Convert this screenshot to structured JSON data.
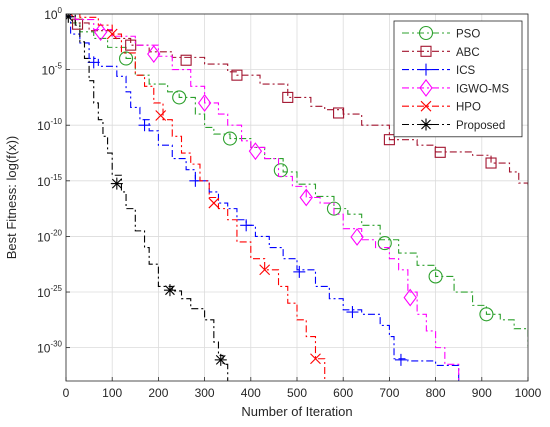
{
  "chart_data": {
    "type": "line",
    "title": "",
    "xlabel": "Number of Iteration",
    "ylabel": "Best Fitness: log(f(x))",
    "xlim": [
      0,
      1000
    ],
    "ylim_exponent": [
      -33,
      0
    ],
    "y_scale": "log",
    "grid": true,
    "legend_position": "top-right",
    "x_ticks": [
      "0",
      "100",
      "200",
      "300",
      "400",
      "500",
      "600",
      "700",
      "800",
      "900",
      "1000"
    ],
    "y_ticks": [
      {
        "base": "10",
        "exp": "0",
        "value_exp": 0
      },
      {
        "base": "10",
        "exp": "-5",
        "value_exp": -5
      },
      {
        "base": "10",
        "exp": "-10",
        "value_exp": -10
      },
      {
        "base": "10",
        "exp": "-15",
        "value_exp": -15
      },
      {
        "base": "10",
        "exp": "-20",
        "value_exp": -20
      },
      {
        "base": "10",
        "exp": "-25",
        "value_exp": -25
      },
      {
        "base": "10",
        "exp": "-30",
        "value_exp": -30
      }
    ],
    "series": [
      {
        "name": "PSO",
        "color": "#2ca02c",
        "marker": "circle",
        "dash": "7,3,2,3",
        "x_log10y": [
          [
            0,
            0.2
          ],
          [
            10,
            -0.8
          ],
          [
            30,
            -1.6
          ],
          [
            60,
            -2.2
          ],
          [
            90,
            -3.0
          ],
          [
            130,
            -4.0
          ],
          [
            150,
            -5.5
          ],
          [
            180,
            -6.3
          ],
          [
            220,
            -7.0
          ],
          [
            245,
            -7.5
          ],
          [
            280,
            -9.0
          ],
          [
            300,
            -10.2
          ],
          [
            320,
            -10.8
          ],
          [
            355,
            -11.2
          ],
          [
            400,
            -12.0
          ],
          [
            430,
            -13.0
          ],
          [
            470,
            -14.2
          ],
          [
            500,
            -15.3
          ],
          [
            540,
            -16.4
          ],
          [
            580,
            -17.5
          ],
          [
            610,
            -18.0
          ],
          [
            640,
            -19.0
          ],
          [
            680,
            -20.3
          ],
          [
            720,
            -21.5
          ],
          [
            760,
            -22.6
          ],
          [
            800,
            -23.6
          ],
          [
            840,
            -25.0
          ],
          [
            880,
            -26.2
          ],
          [
            910,
            -27.0
          ],
          [
            940,
            -27.5
          ],
          [
            970,
            -28.3
          ],
          [
            1000,
            -29.9
          ]
        ],
        "marker_x": [
          130,
          245,
          355,
          465,
          580,
          690,
          800,
          910
        ]
      },
      {
        "name": "ABC",
        "color": "#a2142f",
        "marker": "square",
        "dash": "7,3,2,3",
        "x_log10y": [
          [
            0,
            0.3
          ],
          [
            20,
            -0.8
          ],
          [
            50,
            -1.5
          ],
          [
            100,
            -2.2
          ],
          [
            140,
            -2.8
          ],
          [
            180,
            -3.4
          ],
          [
            230,
            -3.9
          ],
          [
            300,
            -4.5
          ],
          [
            350,
            -5.2
          ],
          [
            370,
            -5.5
          ],
          [
            420,
            -6.3
          ],
          [
            480,
            -7.5
          ],
          [
            530,
            -8.3
          ],
          [
            560,
            -8.6
          ],
          [
            600,
            -9.0
          ],
          [
            640,
            -10.0
          ],
          [
            700,
            -11.3
          ],
          [
            760,
            -11.8
          ],
          [
            800,
            -12.4
          ],
          [
            880,
            -12.7
          ],
          [
            920,
            -13.4
          ],
          [
            960,
            -14.2
          ],
          [
            980,
            -15.2
          ],
          [
            1000,
            -15.4
          ]
        ],
        "marker_x": [
          25,
          140,
          260,
          370,
          480,
          590,
          700,
          810,
          920
        ]
      },
      {
        "name": "ICS",
        "color": "#0000ff",
        "marker": "plus",
        "dash": "7,3,2,3",
        "x_log10y": [
          [
            0,
            -0.2
          ],
          [
            10,
            -1.8
          ],
          [
            30,
            -2.6
          ],
          [
            50,
            -4.0
          ],
          [
            70,
            -4.7
          ],
          [
            110,
            -5.6
          ],
          [
            130,
            -7.0
          ],
          [
            140,
            -8.4
          ],
          [
            160,
            -9.5
          ],
          [
            180,
            -10.5
          ],
          [
            200,
            -11.8
          ],
          [
            230,
            -13.0
          ],
          [
            260,
            -14.0
          ],
          [
            280,
            -15.0
          ],
          [
            310,
            -16.0
          ],
          [
            330,
            -17.0
          ],
          [
            350,
            -17.5
          ],
          [
            370,
            -18.5
          ],
          [
            390,
            -19.0
          ],
          [
            410,
            -20.0
          ],
          [
            440,
            -21.0
          ],
          [
            470,
            -22.0
          ],
          [
            500,
            -23.0
          ],
          [
            540,
            -24.5
          ],
          [
            570,
            -25.6
          ],
          [
            600,
            -26.6
          ],
          [
            640,
            -27.0
          ],
          [
            680,
            -28.0
          ],
          [
            700,
            -29.0
          ],
          [
            710,
            -31.0
          ],
          [
            740,
            -31.2
          ],
          [
            800,
            -31.6
          ],
          [
            850,
            -33.0
          ]
        ],
        "marker_x": [
          60,
          170,
          280,
          390,
          505,
          620,
          725
        ]
      },
      {
        "name": "IGWO-MS",
        "color": "#ff00ff",
        "marker": "diamond",
        "dash": "7,3,2,3",
        "x_log10y": [
          [
            0,
            0.3
          ],
          [
            20,
            -0.5
          ],
          [
            60,
            -1.4
          ],
          [
            100,
            -2.0
          ],
          [
            150,
            -2.8
          ],
          [
            200,
            -3.8
          ],
          [
            230,
            -5.0
          ],
          [
            270,
            -6.5
          ],
          [
            300,
            -8.0
          ],
          [
            330,
            -9.0
          ],
          [
            350,
            -10.0
          ],
          [
            380,
            -11.4
          ],
          [
            400,
            -12.0
          ],
          [
            430,
            -13.0
          ],
          [
            460,
            -14.6
          ],
          [
            490,
            -15.5
          ],
          [
            520,
            -16.5
          ],
          [
            550,
            -17.0
          ],
          [
            580,
            -18.0
          ],
          [
            600,
            -19.3
          ],
          [
            640,
            -20.3
          ],
          [
            670,
            -21.0
          ],
          [
            700,
            -22.0
          ],
          [
            720,
            -23.0
          ],
          [
            740,
            -25.0
          ],
          [
            760,
            -27.0
          ],
          [
            780,
            -28.5
          ],
          [
            800,
            -30.0
          ],
          [
            820,
            -31.5
          ],
          [
            850,
            -33.0
          ]
        ],
        "marker_x": [
          75,
          190,
          300,
          410,
          520,
          630,
          745
        ]
      },
      {
        "name": "HPO",
        "color": "#ff0000",
        "marker": "x",
        "dash": "7,3,2,3",
        "x_log10y": [
          [
            0,
            0.3
          ],
          [
            30,
            -0.3
          ],
          [
            70,
            -1.0
          ],
          [
            100,
            -1.8
          ],
          [
            120,
            -3.5
          ],
          [
            150,
            -5.5
          ],
          [
            170,
            -6.5
          ],
          [
            190,
            -8.0
          ],
          [
            210,
            -9.5
          ],
          [
            230,
            -11.0
          ],
          [
            250,
            -12.5
          ],
          [
            270,
            -13.5
          ],
          [
            290,
            -15.0
          ],
          [
            310,
            -16.5
          ],
          [
            330,
            -17.5
          ],
          [
            350,
            -18.5
          ],
          [
            370,
            -20.5
          ],
          [
            400,
            -22.0
          ],
          [
            430,
            -23.0
          ],
          [
            460,
            -24.5
          ],
          [
            480,
            -26.0
          ],
          [
            500,
            -27.5
          ],
          [
            520,
            -29.0
          ],
          [
            540,
            -31.0
          ],
          [
            560,
            -33.0
          ]
        ],
        "marker_x": [
          5,
          100,
          205,
          320,
          430,
          540
        ]
      },
      {
        "name": "Proposed",
        "color": "#000000",
        "marker": "asterisk",
        "dash": "7,3,2,3",
        "x_log10y": [
          [
            0,
            0.0
          ],
          [
            20,
            -1.0
          ],
          [
            30,
            -2.5
          ],
          [
            40,
            -4.0
          ],
          [
            50,
            -6.0
          ],
          [
            60,
            -8.0
          ],
          [
            70,
            -9.5
          ],
          [
            80,
            -11.0
          ],
          [
            90,
            -12.5
          ],
          [
            100,
            -14.5
          ],
          [
            120,
            -16.0
          ],
          [
            130,
            -17.5
          ],
          [
            150,
            -19.5
          ],
          [
            170,
            -21.0
          ],
          [
            180,
            -22.5
          ],
          [
            200,
            -24.5
          ],
          [
            230,
            -24.9
          ],
          [
            250,
            -25.6
          ],
          [
            270,
            -26.5
          ],
          [
            300,
            -27.5
          ],
          [
            320,
            -29.5
          ],
          [
            330,
            -30.7
          ],
          [
            340,
            -31.5
          ],
          [
            350,
            -33.0
          ]
        ],
        "marker_x": [
          5,
          110,
          225,
          335
        ]
      }
    ]
  }
}
